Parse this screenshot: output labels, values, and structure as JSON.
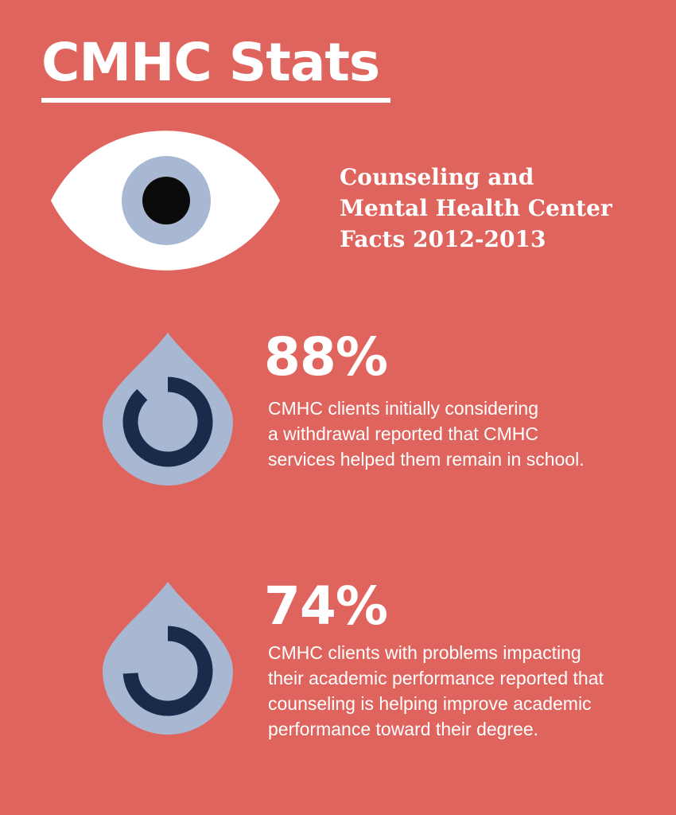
{
  "title": "CMHC Stats",
  "subtitle": {
    "lines": [
      "Counseling and",
      "Mental Health Center",
      "Facts 2012-2013"
    ]
  },
  "colors": {
    "background": "#e0645e",
    "text": "#ffffff",
    "iris": "#a8b8d2",
    "pupil": "#0b0b0b",
    "ring": "#182b4b"
  },
  "icons": {
    "header": "eye-icon",
    "stat": "water-drop-progress-icon"
  },
  "stats": [
    {
      "value": "88%",
      "progress": 0.88,
      "description": [
        "CMHC clients initially considering",
        "a withdrawal reported that CMHC",
        "services helped them remain in school."
      ]
    },
    {
      "value": "74%",
      "progress": 0.74,
      "description": [
        "CMHC clients with problems impacting",
        "their academic performance reported that",
        "counseling is helping improve academic",
        "performance toward their degree."
      ]
    }
  ]
}
